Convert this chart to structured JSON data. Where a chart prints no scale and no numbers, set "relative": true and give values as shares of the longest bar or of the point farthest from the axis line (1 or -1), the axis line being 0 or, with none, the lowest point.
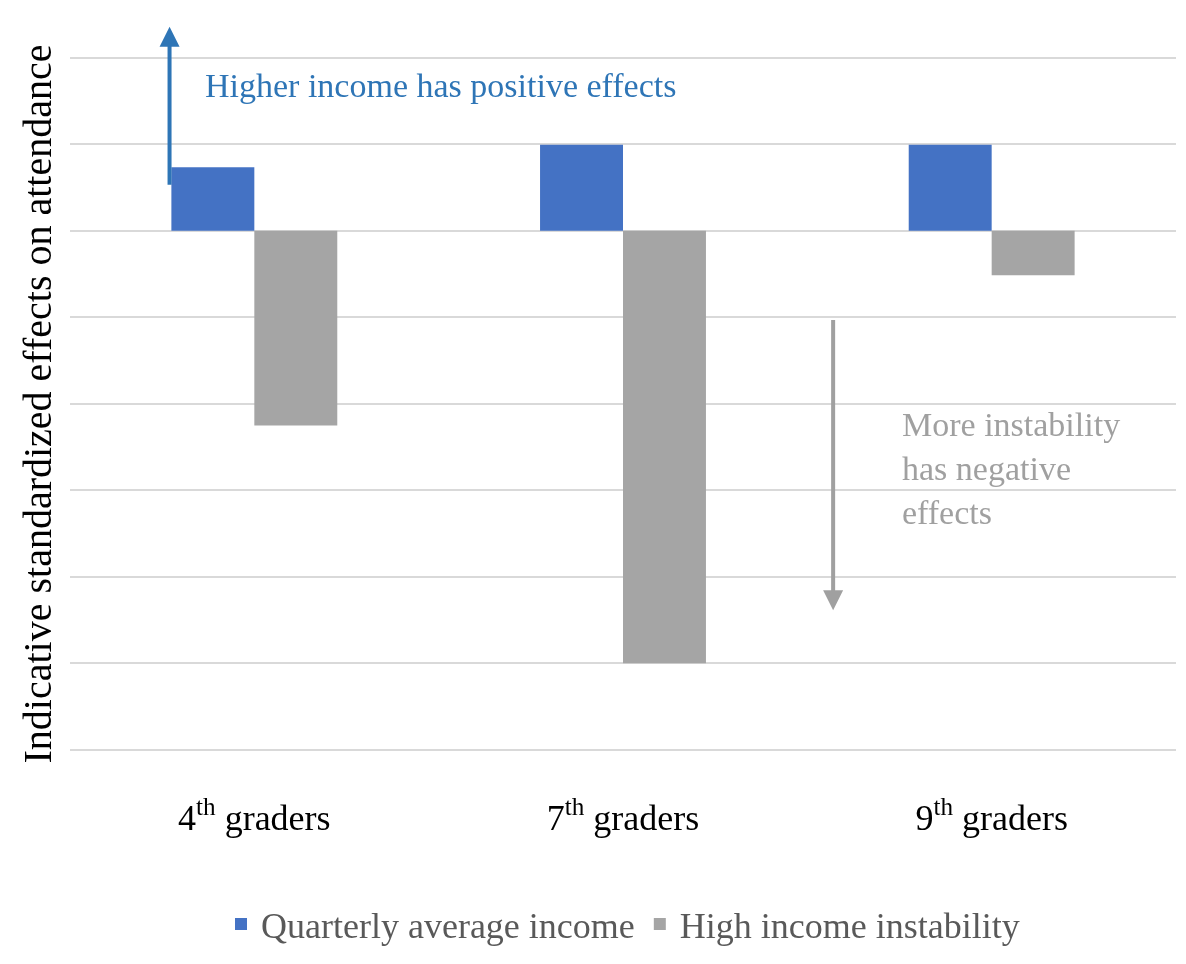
{
  "chart_data": {
    "type": "bar",
    "relative": true,
    "ylabel": "Indicative standardized effects on attendance",
    "categories": [
      "4$^{th}$ graders",
      "7$^{th}$ graders",
      "9$^{th}$ graders"
    ],
    "series": [
      {
        "name": "Quarterly average income",
        "color": "#4472c4",
        "values": [
          0.147,
          0.199,
          0.199
        ]
      },
      {
        "name": "High income instability",
        "color": "#a5a5a5",
        "values": [
          -0.45,
          -1,
          -0.103
        ]
      }
    ],
    "annotations": [
      "Higher income has positive effects",
      "More instability has negative effects"
    ],
    "grid": "y",
    "legend": "bottom"
  }
}
